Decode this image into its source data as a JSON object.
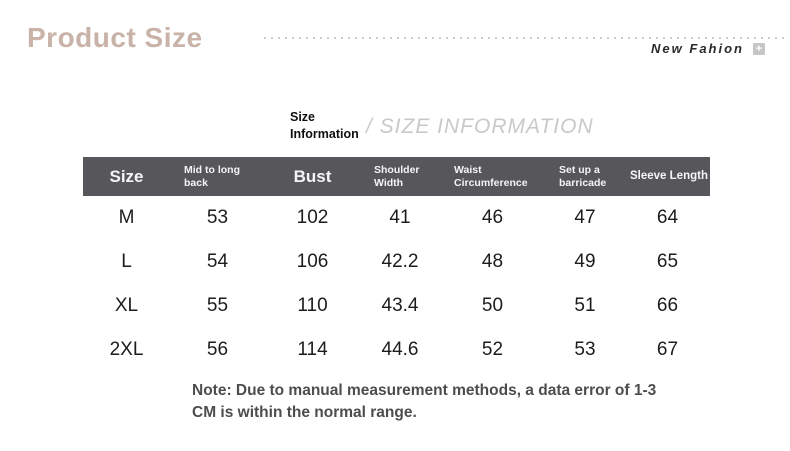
{
  "page": {
    "title": "Product Size",
    "brand": "New Fahion"
  },
  "icons": {
    "plus_glyph": "+"
  },
  "section_heading": {
    "line1": "Size",
    "line2": "Information",
    "watermark": "/ SIZE INFORMATION"
  },
  "table": {
    "columns": [
      {
        "label": "Size",
        "emphasis": true
      },
      {
        "label": "Mid to long back",
        "emphasis": false
      },
      {
        "label": "Bust",
        "emphasis": true
      },
      {
        "label": "Shoulder Width",
        "emphasis": false
      },
      {
        "label": "Waist Circumference",
        "emphasis": false
      },
      {
        "label": "Set up a barricade",
        "emphasis": false
      },
      {
        "label": "Sleeve Length",
        "emphasis": false
      }
    ],
    "rows": [
      [
        "M",
        "53",
        "102",
        "41",
        "46",
        "47",
        "64"
      ],
      [
        "L",
        "54",
        "106",
        "42.2",
        "48",
        "49",
        "65"
      ],
      [
        "XL",
        "55",
        "110",
        "43.4",
        "50",
        "51",
        "66"
      ],
      [
        "2XL",
        "56",
        "114",
        "44.6",
        "52",
        "53",
        "67"
      ]
    ]
  },
  "note": "Note: Due to manual measurement methods, a data error of 1-3 CM is within the normal range.",
  "colors": {
    "title_accent": "#c9b2a7",
    "table_header_bg": "#57565a",
    "table_header_text": "#f5f5f5",
    "watermark_gray": "#c9c9c9",
    "note_text": "#4d4d4d",
    "dotted_line": "#cccccc"
  }
}
